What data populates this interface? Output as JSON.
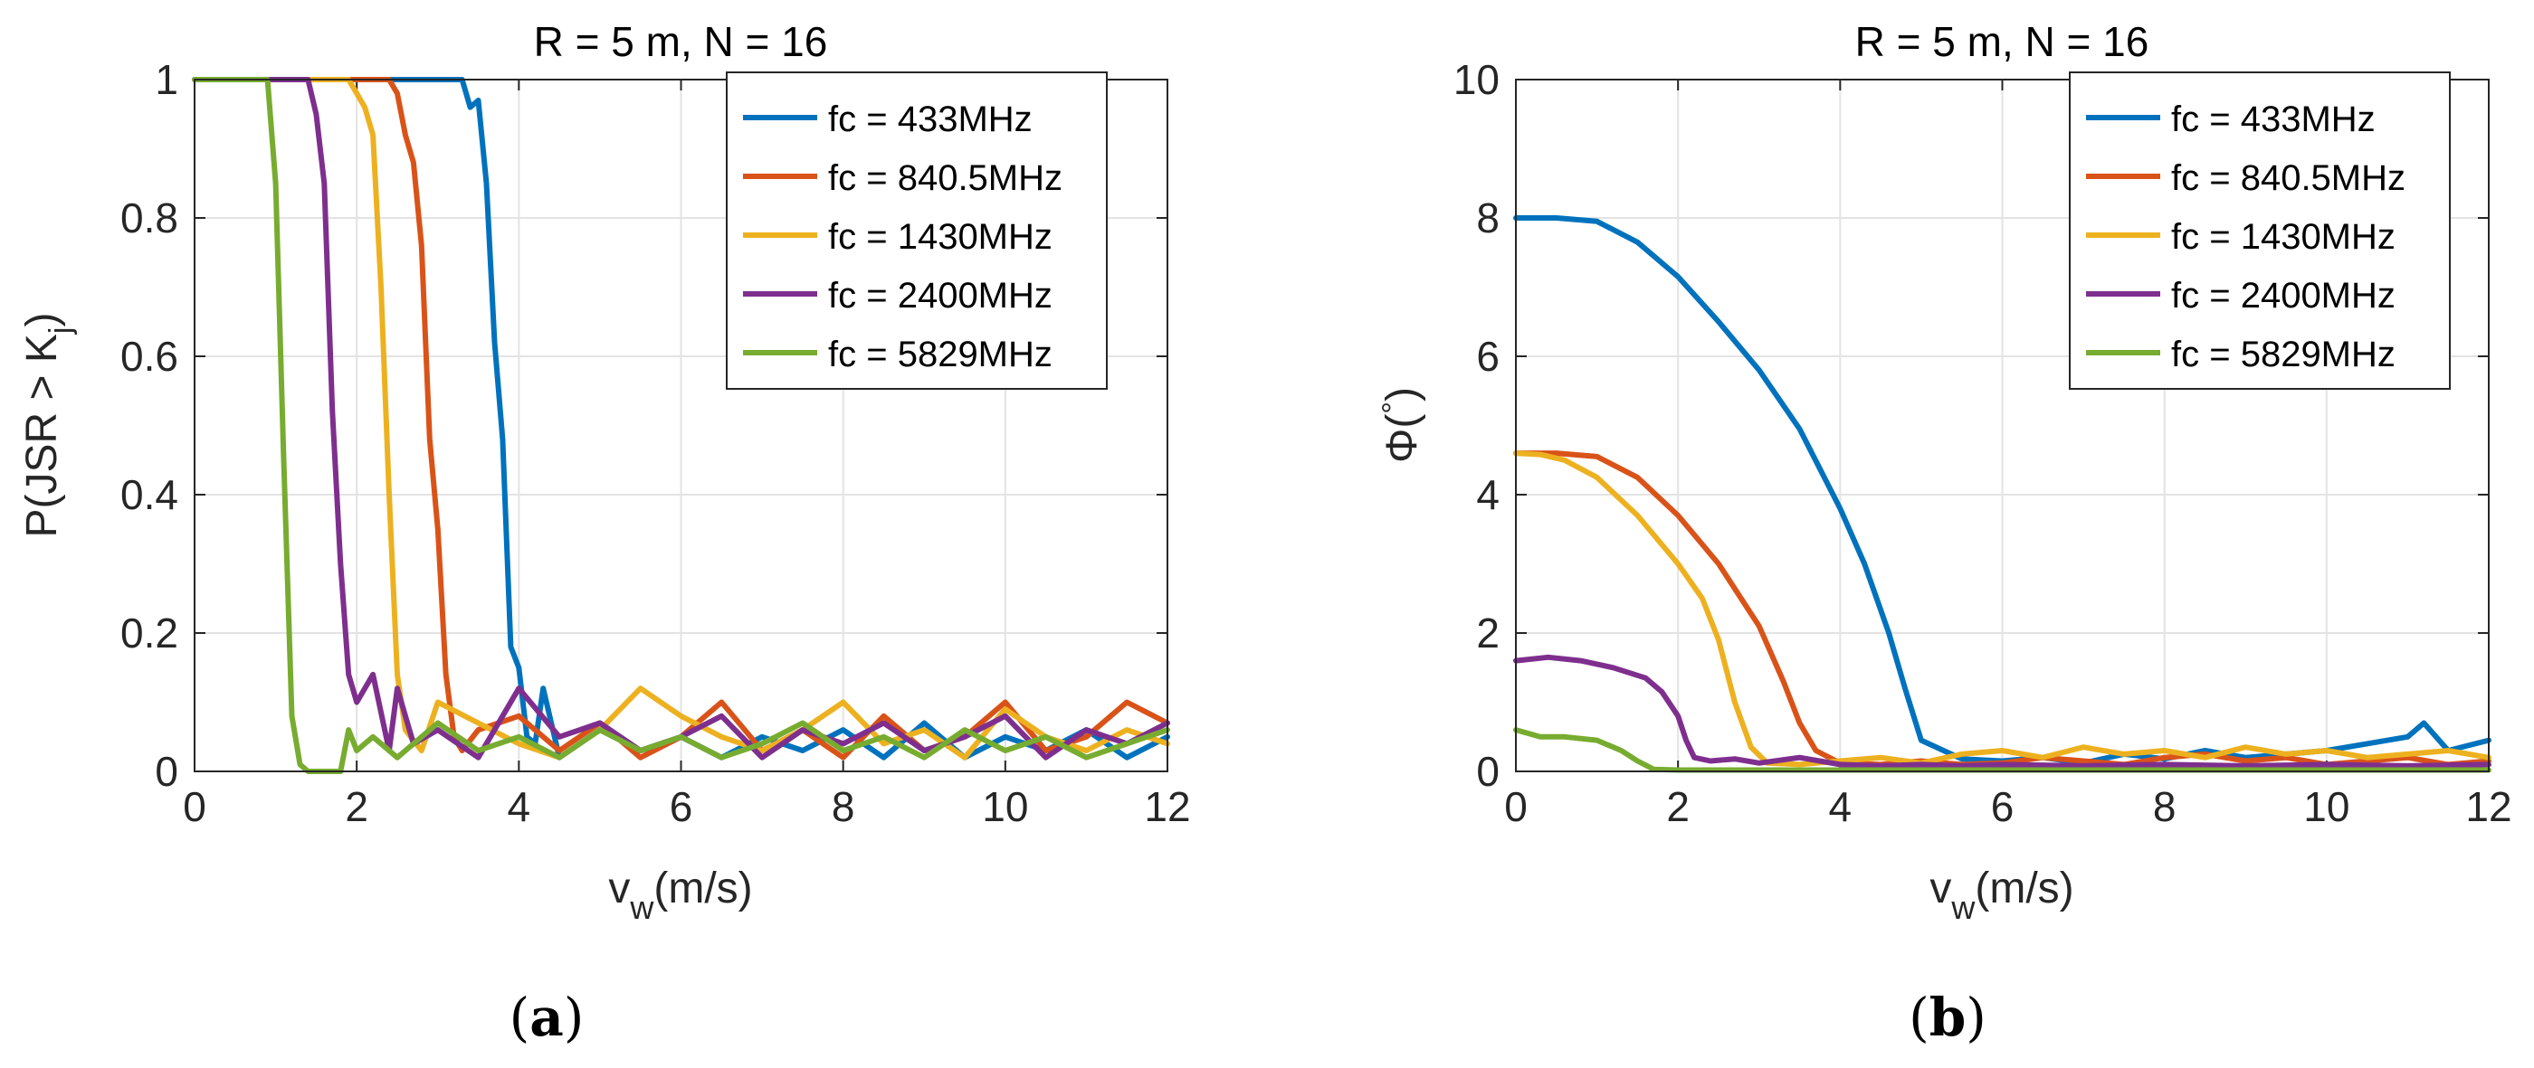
{
  "chart_data": [
    {
      "type": "line",
      "title": "R = 5 m, N = 16",
      "xlabel_main": "v",
      "xlabel_sub": "w",
      "xlabel_rest": "(m/s)",
      "ylabel_main": "P(JSR > K",
      "ylabel_sub": "j",
      "ylabel_rest": ")",
      "panel_caption_open": "(",
      "panel_caption_letter": "a",
      "panel_caption_close": ")",
      "xlim": [
        0,
        12
      ],
      "ylim": [
        0,
        1
      ],
      "xticks": [
        0,
        2,
        4,
        6,
        8,
        10,
        12
      ],
      "yticks": [
        0,
        0.2,
        0.4,
        0.6,
        0.8,
        1
      ],
      "xtick_labels": [
        "0",
        "2",
        "4",
        "6",
        "8",
        "10",
        "12"
      ],
      "ytick_labels": [
        "0",
        "0.2",
        "0.4",
        "0.6",
        "0.8",
        "1"
      ],
      "grid": true,
      "legend_position": "top-right",
      "series": [
        {
          "name": "fc = 433MHz",
          "color": "#0072BD",
          "x": [
            0,
            3.2,
            3.3,
            3.4,
            3.5,
            3.6,
            3.7,
            3.8,
            3.9,
            4.0,
            4.1,
            4.2,
            4.3,
            4.5,
            5,
            5.5,
            6,
            6.5,
            7,
            7.5,
            8,
            8.5,
            9,
            9.5,
            10,
            10.5,
            11,
            11.5,
            12
          ],
          "y": [
            1,
            1,
            1,
            0.96,
            0.97,
            0.85,
            0.62,
            0.48,
            0.18,
            0.15,
            0.05,
            0.04,
            0.12,
            0.02,
            0.06,
            0.03,
            0.05,
            0.02,
            0.05,
            0.03,
            0.06,
            0.02,
            0.07,
            0.02,
            0.05,
            0.03,
            0.06,
            0.02,
            0.05
          ]
        },
        {
          "name": "fc = 840.5MHz",
          "color": "#D95319",
          "x": [
            0,
            2.4,
            2.5,
            2.6,
            2.7,
            2.8,
            2.9,
            3.0,
            3.1,
            3.2,
            3.3,
            3.5,
            4,
            4.5,
            5,
            5.5,
            6,
            6.5,
            7,
            7.5,
            8,
            8.5,
            9,
            9.5,
            10,
            10.5,
            11,
            11.5,
            12
          ],
          "y": [
            1,
            1,
            0.98,
            0.92,
            0.88,
            0.76,
            0.48,
            0.35,
            0.14,
            0.05,
            0.03,
            0.06,
            0.08,
            0.03,
            0.07,
            0.02,
            0.05,
            0.1,
            0.03,
            0.06,
            0.02,
            0.08,
            0.03,
            0.05,
            0.1,
            0.03,
            0.05,
            0.1,
            0.07
          ]
        },
        {
          "name": "fc = 1430MHz",
          "color": "#EDB120",
          "x": [
            0,
            1.9,
            2.0,
            2.1,
            2.2,
            2.3,
            2.4,
            2.5,
            2.6,
            2.8,
            3,
            3.5,
            4,
            4.5,
            5,
            5.5,
            6,
            6.5,
            7,
            7.5,
            8,
            8.5,
            9,
            9.5,
            10,
            10.5,
            11,
            11.5,
            12
          ],
          "y": [
            1,
            1,
            0.98,
            0.96,
            0.92,
            0.7,
            0.4,
            0.14,
            0.06,
            0.03,
            0.1,
            0.07,
            0.04,
            0.02,
            0.06,
            0.12,
            0.08,
            0.05,
            0.03,
            0.06,
            0.1,
            0.04,
            0.06,
            0.02,
            0.09,
            0.05,
            0.03,
            0.06,
            0.04
          ]
        },
        {
          "name": "fc = 2400MHz",
          "color": "#7E2F8E",
          "x": [
            0,
            1.4,
            1.5,
            1.6,
            1.7,
            1.8,
            1.9,
            2.0,
            2.2,
            2.4,
            2.5,
            2.7,
            3,
            3.5,
            4,
            4.5,
            5,
            5.5,
            6,
            6.5,
            7,
            7.5,
            8,
            8.5,
            9,
            9.5,
            10,
            10.5,
            11,
            11.5,
            12
          ],
          "y": [
            1,
            1,
            0.95,
            0.85,
            0.52,
            0.3,
            0.14,
            0.1,
            0.14,
            0.03,
            0.12,
            0.04,
            0.06,
            0.02,
            0.12,
            0.05,
            0.07,
            0.03,
            0.05,
            0.08,
            0.02,
            0.06,
            0.04,
            0.07,
            0.03,
            0.05,
            0.08,
            0.02,
            0.06,
            0.04,
            0.07
          ]
        },
        {
          "name": "fc = 5829MHz",
          "color": "#77AC30",
          "x": [
            0,
            0.9,
            1.0,
            1.1,
            1.2,
            1.3,
            1.4,
            1.6,
            1.8,
            1.9,
            2.0,
            2.2,
            2.5,
            3,
            3.5,
            4,
            4.5,
            5,
            5.5,
            6,
            6.5,
            7,
            7.5,
            8,
            8.5,
            9,
            9.5,
            10,
            10.5,
            11,
            11.5,
            12
          ],
          "y": [
            1,
            1,
            0.85,
            0.45,
            0.08,
            0.01,
            0,
            0,
            0,
            0.06,
            0.03,
            0.05,
            0.02,
            0.07,
            0.03,
            0.05,
            0.02,
            0.06,
            0.03,
            0.05,
            0.02,
            0.04,
            0.07,
            0.03,
            0.05,
            0.02,
            0.06,
            0.03,
            0.05,
            0.02,
            0.04,
            0.06
          ]
        }
      ]
    },
    {
      "type": "line",
      "title": "R = 5 m, N = 16",
      "xlabel_main": "v",
      "xlabel_sub": "w",
      "xlabel_rest": "(m/s)",
      "ylabel_main": "Φ(",
      "ylabel_sub": "°",
      "ylabel_rest": ")",
      "panel_caption_open": "(",
      "panel_caption_letter": "b",
      "panel_caption_close": ")",
      "xlim": [
        0,
        12
      ],
      "ylim": [
        0,
        10
      ],
      "xticks": [
        0,
        2,
        4,
        6,
        8,
        10,
        12
      ],
      "yticks": [
        0,
        2,
        4,
        6,
        8,
        10
      ],
      "xtick_labels": [
        "0",
        "2",
        "4",
        "6",
        "8",
        "10",
        "12"
      ],
      "ytick_labels": [
        "0",
        "2",
        "4",
        "6",
        "8",
        "10"
      ],
      "grid": true,
      "legend_position": "top-right",
      "series": [
        {
          "name": "fc = 433MHz",
          "color": "#0072BD",
          "x": [
            0,
            0.5,
            1,
            1.5,
            2,
            2.5,
            3,
            3.5,
            4,
            4.3,
            4.6,
            4.8,
            5,
            5.5,
            6,
            6.5,
            7,
            7.5,
            8,
            8.5,
            9,
            9.5,
            10,
            10.5,
            11,
            11.2,
            11.5,
            12
          ],
          "y": [
            8,
            8,
            7.95,
            7.65,
            7.15,
            6.5,
            5.8,
            4.95,
            3.8,
            3.0,
            2.0,
            1.2,
            0.45,
            0.18,
            0.15,
            0.2,
            0.12,
            0.25,
            0.18,
            0.3,
            0.2,
            0.25,
            0.3,
            0.4,
            0.5,
            0.7,
            0.3,
            0.45
          ]
        },
        {
          "name": "fc = 840.5MHz",
          "color": "#D95319",
          "x": [
            0,
            0.5,
            1,
            1.5,
            2,
            2.5,
            3,
            3.3,
            3.5,
            3.7,
            4,
            4.5,
            5,
            5.5,
            6,
            6.5,
            7,
            7.5,
            8,
            8.5,
            9,
            9.5,
            10,
            10.5,
            11,
            11.5,
            12
          ],
          "y": [
            4.6,
            4.6,
            4.55,
            4.25,
            3.7,
            3.0,
            2.1,
            1.3,
            0.7,
            0.3,
            0.12,
            0.1,
            0.15,
            0.1,
            0.12,
            0.2,
            0.15,
            0.1,
            0.2,
            0.25,
            0.15,
            0.2,
            0.1,
            0.15,
            0.2,
            0.1,
            0.15
          ]
        },
        {
          "name": "fc = 1430MHz",
          "color": "#EDB120",
          "x": [
            0,
            0.3,
            0.6,
            1,
            1.5,
            2,
            2.3,
            2.5,
            2.7,
            2.9,
            3.1,
            3.5,
            4,
            4.5,
            5,
            5.5,
            6,
            6.5,
            7,
            7.5,
            8,
            8.5,
            9,
            9.5,
            10,
            10.5,
            11,
            11.5,
            12
          ],
          "y": [
            4.6,
            4.58,
            4.5,
            4.25,
            3.7,
            3.0,
            2.5,
            1.9,
            1.0,
            0.35,
            0.12,
            0.1,
            0.15,
            0.2,
            0.12,
            0.25,
            0.3,
            0.2,
            0.35,
            0.25,
            0.3,
            0.2,
            0.35,
            0.25,
            0.3,
            0.2,
            0.25,
            0.3,
            0.2
          ]
        },
        {
          "name": "fc = 2400MHz",
          "color": "#7E2F8E",
          "x": [
            0,
            0.4,
            0.8,
            1.2,
            1.6,
            1.8,
            2.0,
            2.1,
            2.2,
            2.4,
            2.7,
            3,
            3.5,
            4,
            4.5,
            5,
            5.5,
            6,
            7,
            8,
            9,
            10,
            11,
            12
          ],
          "y": [
            1.6,
            1.65,
            1.6,
            1.5,
            1.35,
            1.15,
            0.8,
            0.45,
            0.2,
            0.15,
            0.18,
            0.12,
            0.2,
            0.1,
            0.08,
            0.1,
            0.08,
            0.1,
            0.08,
            0.1,
            0.08,
            0.1,
            0.08,
            0.1
          ]
        },
        {
          "name": "fc = 5829MHz",
          "color": "#77AC30",
          "x": [
            0,
            0.3,
            0.6,
            1,
            1.3,
            1.5,
            1.7,
            2,
            3,
            4,
            5,
            6,
            7,
            8,
            9,
            10,
            11,
            12
          ],
          "y": [
            0.6,
            0.5,
            0.5,
            0.45,
            0.3,
            0.15,
            0.03,
            0.02,
            0.02,
            0.02,
            0.02,
            0.02,
            0.02,
            0.02,
            0.02,
            0.02,
            0.02,
            0.02
          ]
        }
      ]
    }
  ]
}
